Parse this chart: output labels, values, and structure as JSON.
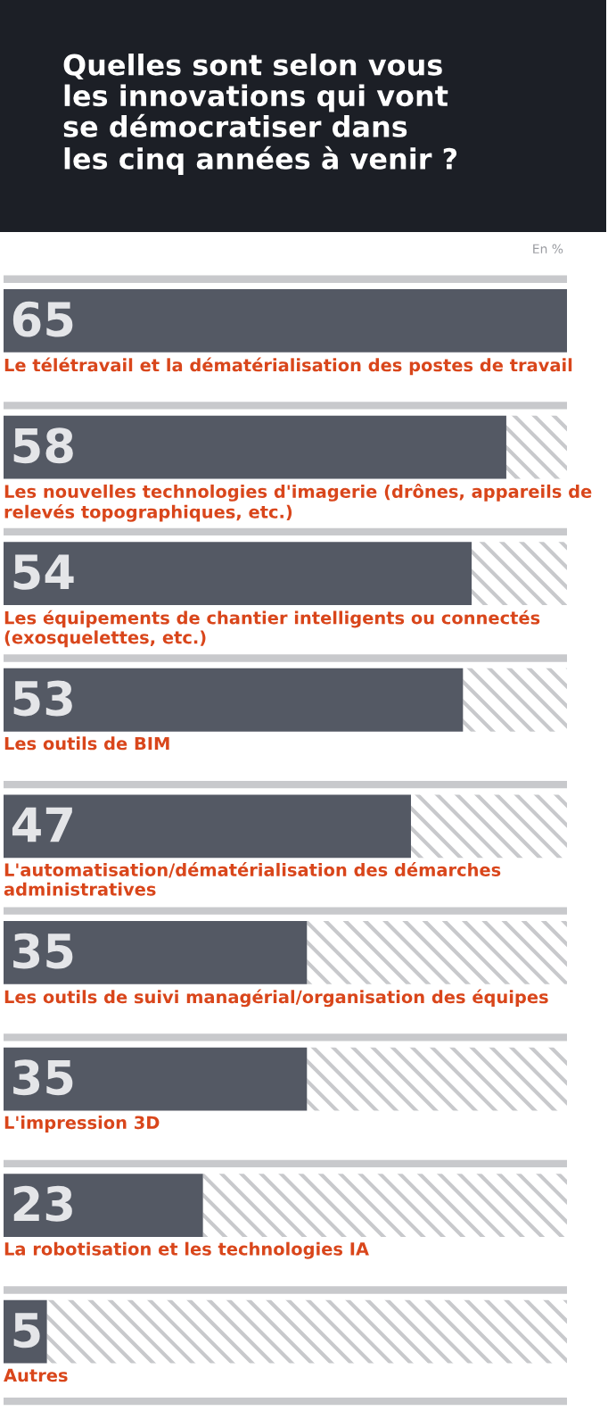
{
  "chart_data": {
    "type": "bar",
    "orientation": "horizontal",
    "title": "Quelles sont selon vous\nles innovations qui vont\nse démocratiser dans\nles cinq années à venir ?",
    "subtitle": "En %",
    "categories": [
      "Le télétravail et la dématérialisation des postes de travail",
      "Les nouvelles technologies d'imagerie (drônes, appareils de relevés topographiques, etc.)",
      "Les équipements de chantier intelligents ou connectés (exosquelettes, etc.)",
      "Les outils de BIM",
      "L'automatisation/dématérialisation des démarches administratives",
      "Les outils de suivi managérial/organisation des équipes",
      "L'impression 3D",
      "La robotisation et les technologies IA",
      "Autres"
    ],
    "values": [
      65,
      58,
      54,
      53,
      47,
      35,
      35,
      23,
      5
    ],
    "color": "#545964",
    "data_labels": true
  }
}
